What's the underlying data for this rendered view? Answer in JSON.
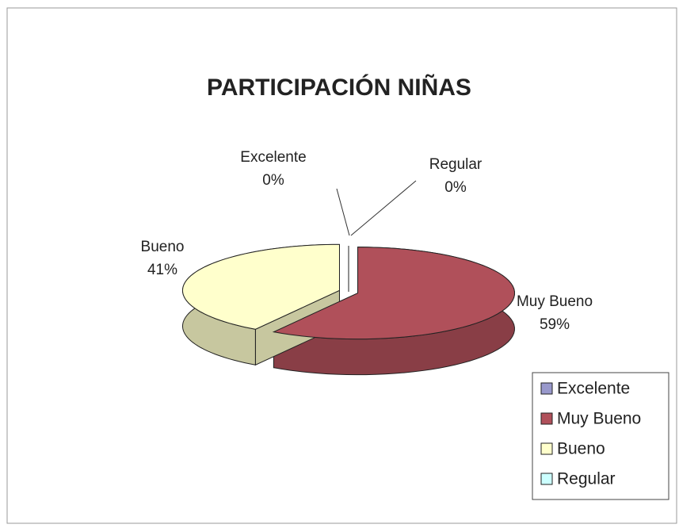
{
  "chart_data": {
    "type": "pie",
    "title": "PARTICIPACIÓN NIÑAS",
    "categories": [
      "Excelente",
      "Muy Bueno",
      "Bueno",
      "Regular"
    ],
    "values": [
      0,
      59,
      41,
      0
    ],
    "value_labels": [
      "0%",
      "59%",
      "41%",
      "0%"
    ],
    "colors": [
      "#9999cc",
      "#b0505a",
      "#ffffcc",
      "#ccffff"
    ],
    "legend": "bottom-right"
  }
}
